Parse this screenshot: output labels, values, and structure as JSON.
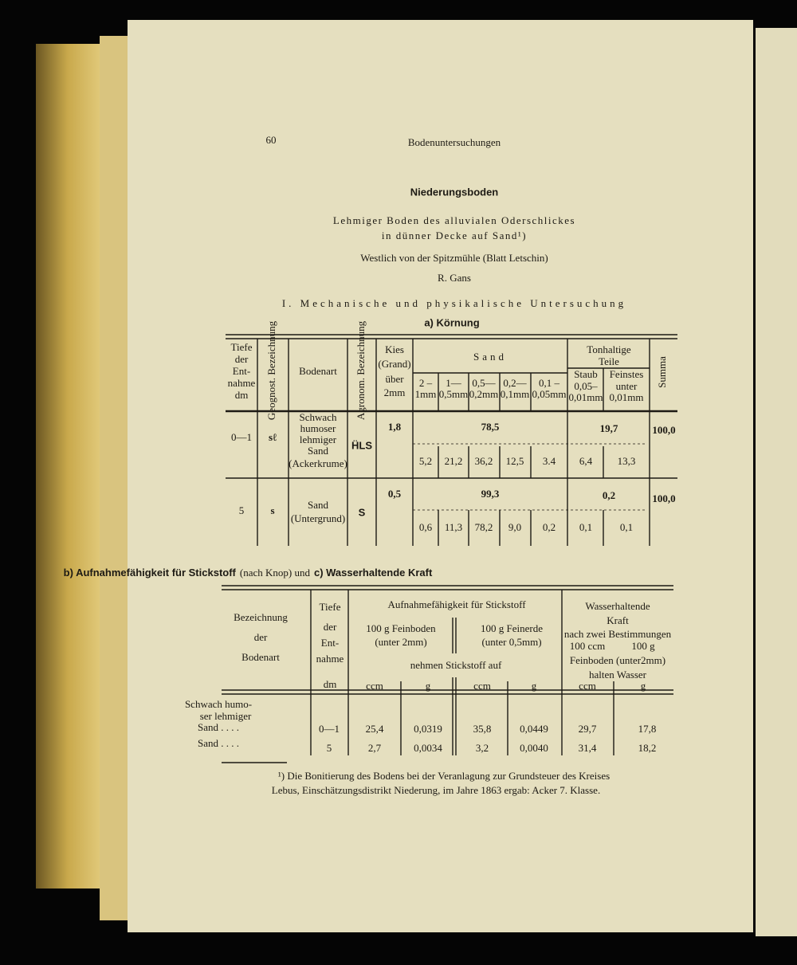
{
  "header": {
    "page_number": "60",
    "running_title": "Bodenuntersuchungen"
  },
  "title": "Niederungsboden",
  "subtitle": [
    "Lehmiger Boden des alluvialen Oderschlickes",
    "in dünner Decke auf Sand¹)"
  ],
  "location": "Westlich von der Spitzmühle (Blatt Letschin)",
  "author": "R. Gans",
  "section_1": "I. Mechanische und physikalische Untersuchung",
  "section_1a": "a) Körnung",
  "table_1": {
    "headers": {
      "depth": [
        "Tiefe",
        "der",
        "Ent-",
        "nahme",
        "dm"
      ],
      "geognost": "Geognost. Bezeichnung",
      "soil": "Bodenart",
      "agronom": "Agronom. Bezeichnung",
      "gravel": [
        "Kies",
        "(Grand)",
        "über",
        "2mm"
      ],
      "sand": "Sand",
      "sand_fractions": [
        [
          "2 –",
          "1mm"
        ],
        [
          "1—",
          "0,5mm"
        ],
        [
          "0,5—",
          "0,2mm"
        ],
        [
          "0,2—",
          "0,1mm"
        ],
        [
          "0,1 –",
          "0,05mm"
        ]
      ],
      "clay": [
        "Tonhaltige",
        "Teile"
      ],
      "dust": [
        "Staub",
        "0,05–",
        "0,01mm"
      ],
      "finest": [
        "Feinstes",
        "unter",
        "0,01mm"
      ],
      "sum": "Summa"
    },
    "rows": [
      {
        "depth": "0—1",
        "geognost": "sℓ",
        "soil": [
          "Schwach",
          "humoser",
          "lehmiger",
          "Sand",
          "(Ackerkrume)"
        ],
        "agronom": "ḦLS",
        "gravel": "1,8",
        "sand_total": "78,5",
        "sand": [
          "5,2",
          "21,2",
          "36,2",
          "12,5",
          "3.4"
        ],
        "clay_total": "19,7",
        "clay": [
          "6,4",
          "13,3"
        ],
        "sum": "100,0"
      },
      {
        "depth": "5",
        "geognost": "s",
        "soil": [
          "Sand",
          "(Untergrund)"
        ],
        "agronom": "S",
        "gravel": "0,5",
        "sand_total": "99,3",
        "sand": [
          "0,6",
          "11,3",
          "78,2",
          "9,0",
          "0,2"
        ],
        "clay_total": "0,2",
        "clay": [
          "0,1",
          "0,1"
        ],
        "sum": "100,0"
      }
    ]
  },
  "section_b": [
    "b) Aufnahmefähigkeit für Stickstoff",
    "(nach Knop) und",
    "c) Wasserhaltende Kraft"
  ],
  "table_2": {
    "headers": {
      "designation": [
        "Bezeichnung",
        "der",
        "Bodenart"
      ],
      "depth": [
        "Tiefe",
        "der",
        "Ent-",
        "nahme"
      ],
      "depth_unit": "dm",
      "nitrogen": "Aufnahmefähigkeit für Stickstoff",
      "fine_soil": [
        "100 g Feinboden",
        "(unter 2mm)"
      ],
      "fine_earth": [
        "100 g Feinerde",
        "(unter 0,5mm)"
      ],
      "absorb": "nehmen Stickstoff auf",
      "water": [
        "Wasserhaltende",
        "Kraft"
      ],
      "water_note": "nach zwei Bestimmungen",
      "water_cols": [
        "100 ccm",
        "100 g"
      ],
      "water_text": [
        "Feinboden (unter2mm)",
        "halten Wasser"
      ],
      "units": [
        "ccm",
        "g",
        "ccm",
        "g",
        "ccm",
        "g"
      ]
    },
    "rows": [
      {
        "soil": [
          "Schwach humo-",
          "ser lehmiger",
          "Sand . . . ."
        ],
        "depth": "0—1",
        "values": [
          "25,4",
          "0,0319",
          "35,8",
          "0,0449",
          "29,7",
          "17,8"
        ]
      },
      {
        "soil": [
          "Sand . . . ."
        ],
        "depth": "5",
        "values": [
          "2,7",
          "0,0034",
          "3,2",
          "0,0040",
          "31,4",
          "18,2"
        ]
      }
    ]
  },
  "footnote": [
    "¹) Die Bonitierung des Bodens bei der Veranlagung zur Grundsteuer des Kreises",
    "Lebus, Einschätzungsdistrikt Niederung, im Jahre 1863 ergab: Acker 7. Klasse."
  ]
}
